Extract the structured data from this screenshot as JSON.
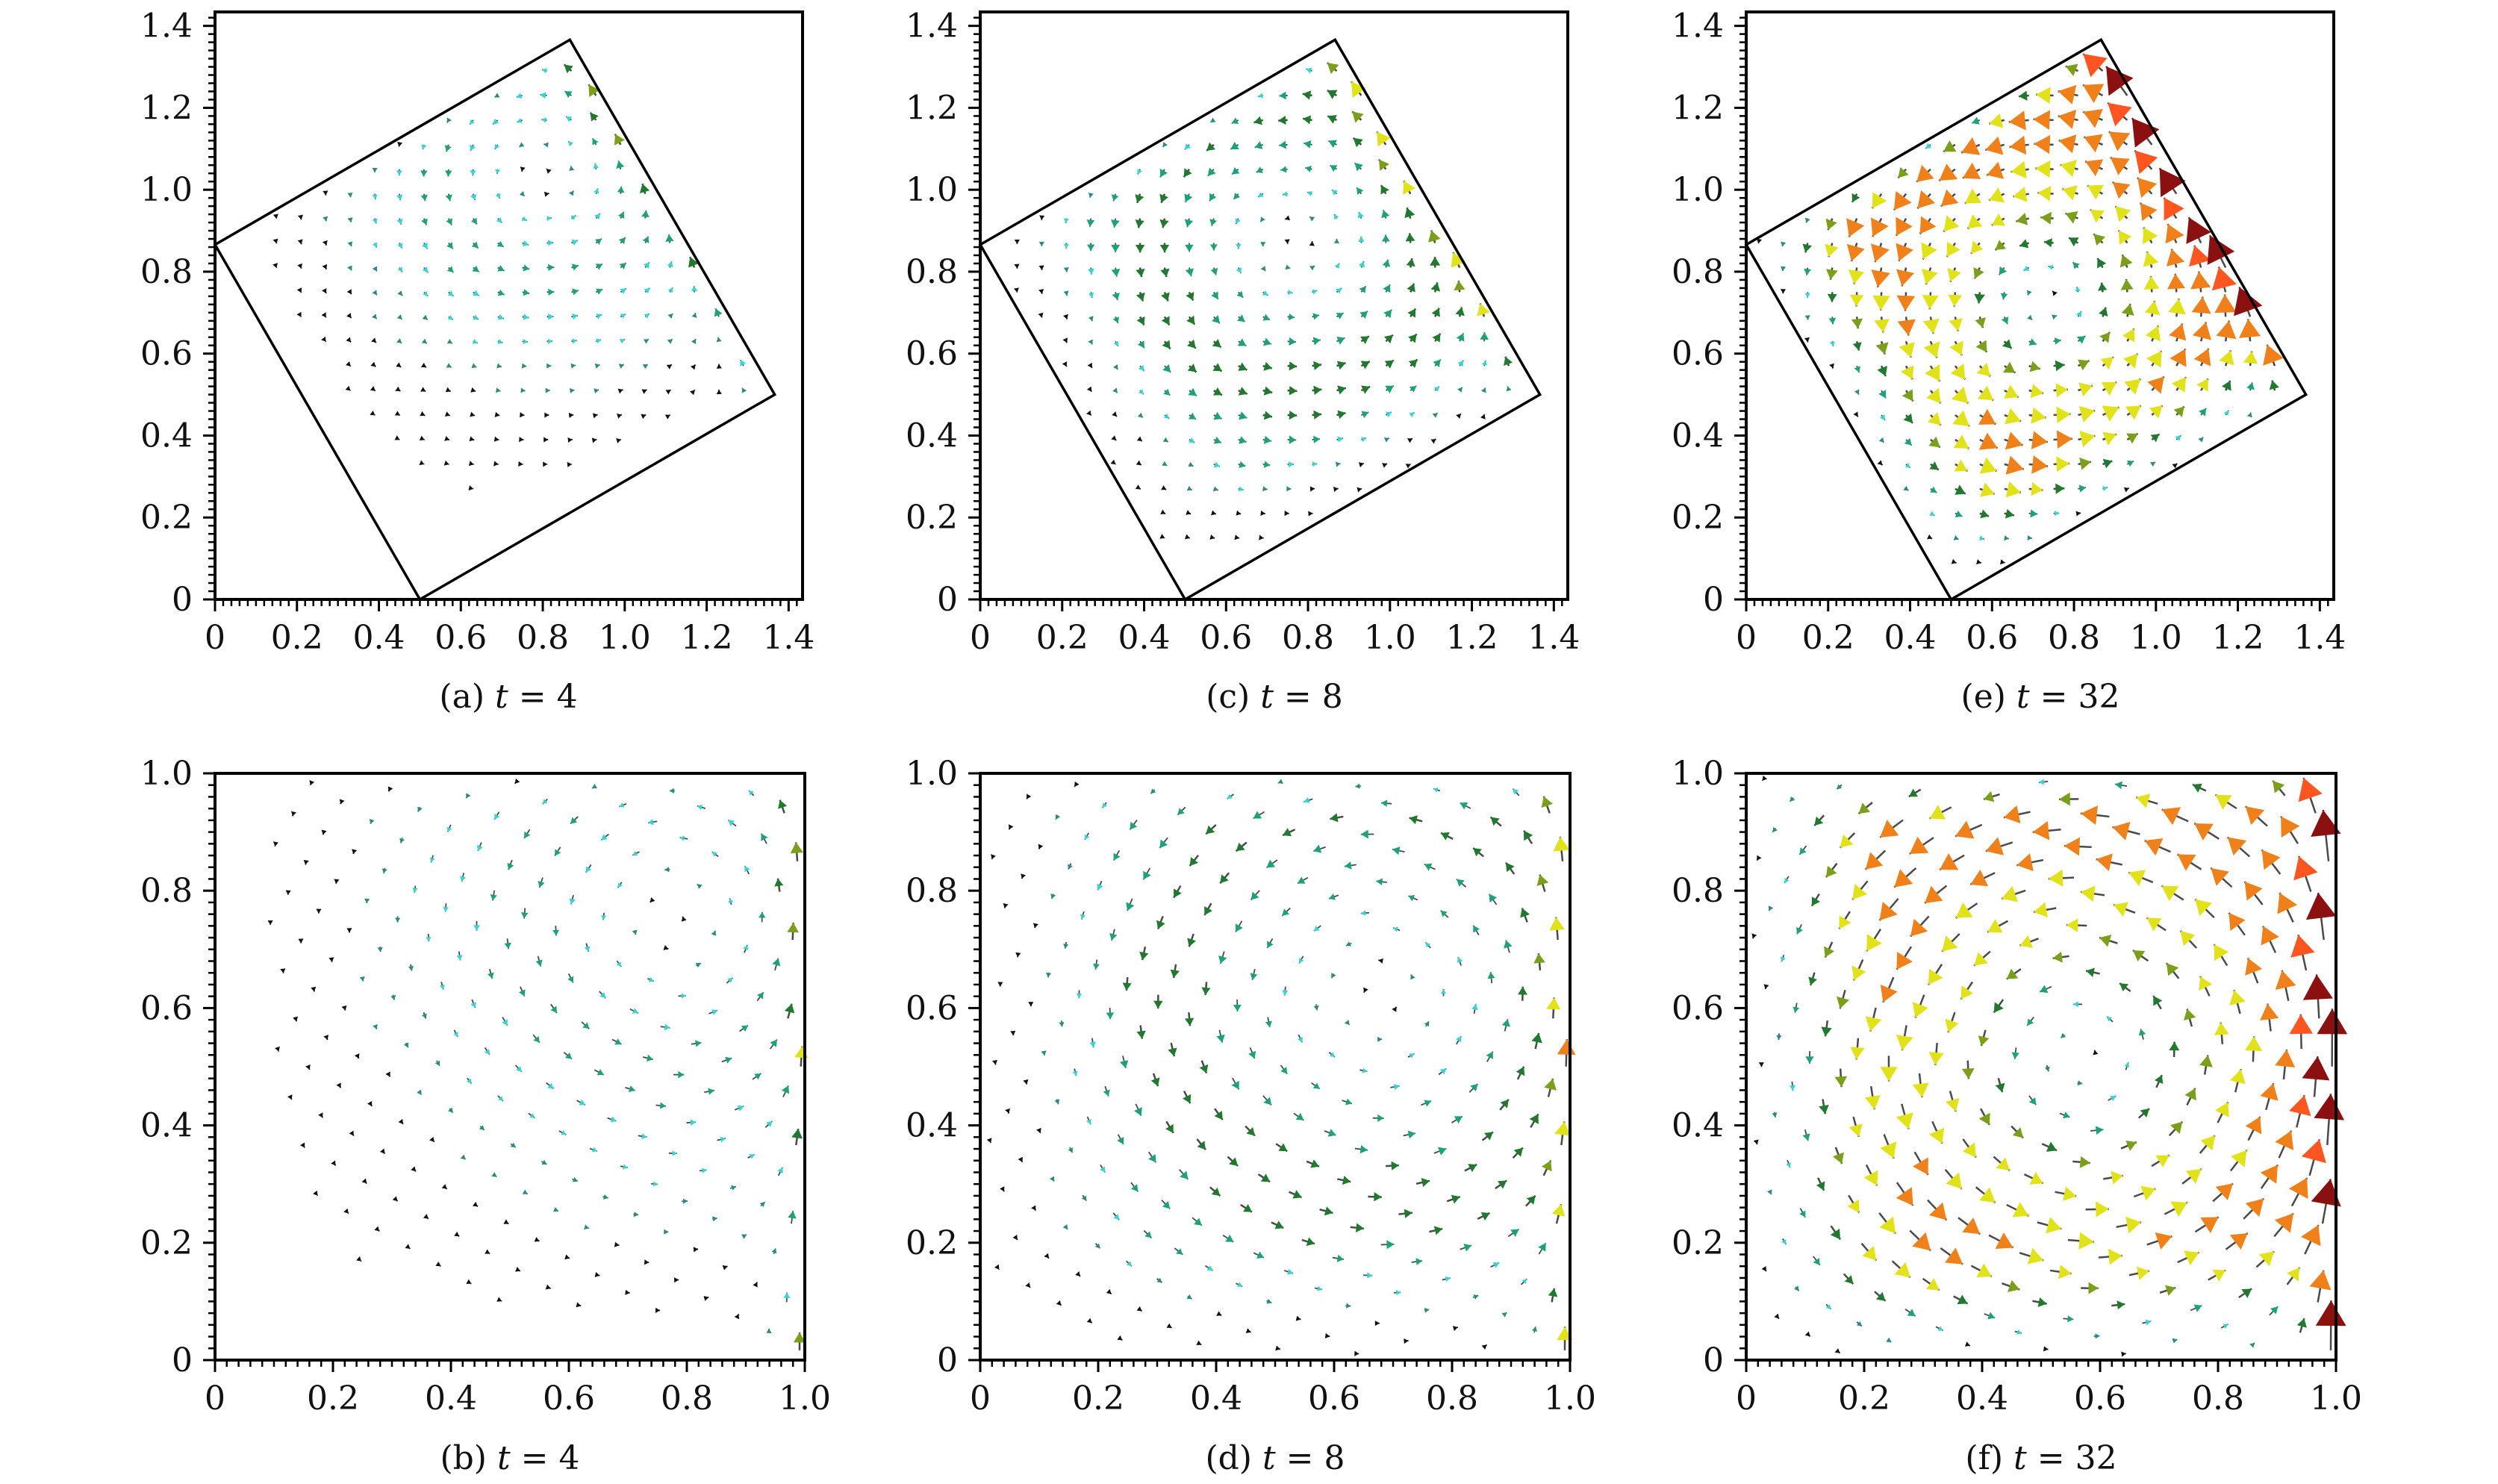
{
  "chart_data": [
    {
      "id": "a",
      "type": "quiver",
      "caption_prefix": "(a)",
      "caption_var": "t",
      "caption_eq": "=",
      "caption_value": "4",
      "frame": "rotated",
      "xlim": [
        0,
        1.434
      ],
      "ylim": [
        0,
        1.434
      ],
      "xticks": [
        "0",
        "0.2",
        "0.4",
        "0.6",
        "0.8",
        "1.0",
        "1.2",
        "1.4"
      ],
      "yticks": [
        "0",
        "0.2",
        "0.4",
        "0.6",
        "0.8",
        "1.0",
        "1.2",
        "1.4"
      ],
      "tick_values": [
        0,
        0.2,
        0.4,
        0.6,
        0.8,
        1.0,
        1.2,
        1.4
      ],
      "domain_polygon": [
        [
          0.5,
          0
        ],
        [
          1.366,
          0.5
        ],
        [
          0.866,
          1.366
        ],
        [
          0,
          0.866
        ]
      ],
      "rotation_deg": 30,
      "vortex_center_local": [
        0.78,
        0.75
      ],
      "vortex_radius": 0.26,
      "moving_wall": "right",
      "wall_velocity_direction": "up",
      "rotation_sense": "counterclockwise",
      "t": 4
    },
    {
      "id": "b",
      "type": "quiver",
      "caption_prefix": "(b)",
      "caption_var": "t",
      "caption_eq": "=",
      "caption_value": "4",
      "frame": "local",
      "xlim": [
        0,
        1.0
      ],
      "ylim": [
        0,
        1.0
      ],
      "xticks": [
        "0",
        "0.2",
        "0.4",
        "0.6",
        "0.8",
        "1.0"
      ],
      "yticks": [
        "0",
        "0.2",
        "0.4",
        "0.6",
        "0.8",
        "1.0"
      ],
      "tick_values": [
        0,
        0.2,
        0.4,
        0.6,
        0.8,
        1.0
      ],
      "vortex_center_local": [
        0.78,
        0.75
      ],
      "vortex_radius": 0.26,
      "moving_wall": "right",
      "wall_velocity_direction": "up",
      "rotation_sense": "counterclockwise",
      "t": 4
    },
    {
      "id": "c",
      "type": "quiver",
      "caption_prefix": "(c)",
      "caption_var": "t",
      "caption_eq": "=",
      "caption_value": "8",
      "frame": "rotated",
      "xlim": [
        0,
        1.434
      ],
      "ylim": [
        0,
        1.434
      ],
      "xticks": [
        "0",
        "0.2",
        "0.4",
        "0.6",
        "0.8",
        "1.0",
        "1.2",
        "1.4"
      ],
      "yticks": [
        "0",
        "0.2",
        "0.4",
        "0.6",
        "0.8",
        "1.0",
        "1.2",
        "1.4"
      ],
      "tick_values": [
        0,
        0.2,
        0.4,
        0.6,
        0.8,
        1.0,
        1.2,
        1.4
      ],
      "domain_polygon": [
        [
          0.5,
          0
        ],
        [
          1.366,
          0.5
        ],
        [
          0.866,
          1.366
        ],
        [
          0,
          0.866
        ]
      ],
      "rotation_deg": 30,
      "vortex_center_local": [
        0.67,
        0.62
      ],
      "vortex_radius": 0.36,
      "moving_wall": "right",
      "wall_velocity_direction": "up",
      "rotation_sense": "counterclockwise",
      "t": 8
    },
    {
      "id": "d",
      "type": "quiver",
      "caption_prefix": "(d)",
      "caption_var": "t",
      "caption_eq": "=",
      "caption_value": "8",
      "frame": "local",
      "xlim": [
        0,
        1.0
      ],
      "ylim": [
        0,
        1.0
      ],
      "xticks": [
        "0",
        "0.2",
        "0.4",
        "0.6",
        "0.8",
        "1.0"
      ],
      "yticks": [
        "0",
        "0.2",
        "0.4",
        "0.6",
        "0.8",
        "1.0"
      ],
      "tick_values": [
        0,
        0.2,
        0.4,
        0.6,
        0.8,
        1.0
      ],
      "vortex_center_local": [
        0.67,
        0.62
      ],
      "vortex_radius": 0.36,
      "moving_wall": "right",
      "wall_velocity_direction": "up",
      "rotation_sense": "counterclockwise",
      "t": 8
    },
    {
      "id": "e",
      "type": "quiver",
      "caption_prefix": "(e)",
      "caption_var": "t",
      "caption_eq": "=",
      "caption_value": "32",
      "frame": "rotated",
      "xlim": [
        0,
        1.434
      ],
      "ylim": [
        0,
        1.434
      ],
      "xticks": [
        "0",
        "0.2",
        "0.4",
        "0.6",
        "0.8",
        "1.0",
        "1.2",
        "1.4"
      ],
      "yticks": [
        "0",
        "0.2",
        "0.4",
        "0.6",
        "0.8",
        "1.0",
        "1.2",
        "1.4"
      ],
      "tick_values": [
        0,
        0.2,
        0.4,
        0.6,
        0.8,
        1.0,
        1.2,
        1.4
      ],
      "domain_polygon": [
        [
          0.5,
          0
        ],
        [
          1.366,
          0.5
        ],
        [
          0.866,
          1.366
        ],
        [
          0,
          0.866
        ]
      ],
      "rotation_deg": 30,
      "vortex_center_local": [
        0.57,
        0.52
      ],
      "vortex_radius": 0.46,
      "moving_wall": "right",
      "wall_velocity_direction": "up",
      "rotation_sense": "counterclockwise",
      "t": 32
    },
    {
      "id": "f",
      "type": "quiver",
      "caption_prefix": "(f)",
      "caption_var": "t",
      "caption_eq": "=",
      "caption_value": "32",
      "frame": "local",
      "xlim": [
        0,
        1.0
      ],
      "ylim": [
        0,
        1.0
      ],
      "xticks": [
        "0",
        "0.2",
        "0.4",
        "0.6",
        "0.8",
        "1.0"
      ],
      "yticks": [
        "0",
        "0.2",
        "0.4",
        "0.6",
        "0.8",
        "1.0"
      ],
      "tick_values": [
        0,
        0.2,
        0.4,
        0.6,
        0.8,
        1.0
      ],
      "vortex_center_local": [
        0.57,
        0.52
      ],
      "vortex_radius": 0.46,
      "moving_wall": "right",
      "wall_velocity_direction": "up",
      "rotation_sense": "counterclockwise",
      "t": 32
    }
  ],
  "grid_spacing": 0.06,
  "minor_tick_step": 0.02,
  "colormap": [
    "#111111",
    "#2a8a80",
    "#33d6d6",
    "#1aa37a",
    "#1f7a2e",
    "#7aa01a",
    "#e2e21a",
    "#f0801a",
    "#ff5520",
    "#8b1010"
  ],
  "colors": {
    "axis": "#000000",
    "text": "#111111",
    "background": "#ffffff"
  }
}
